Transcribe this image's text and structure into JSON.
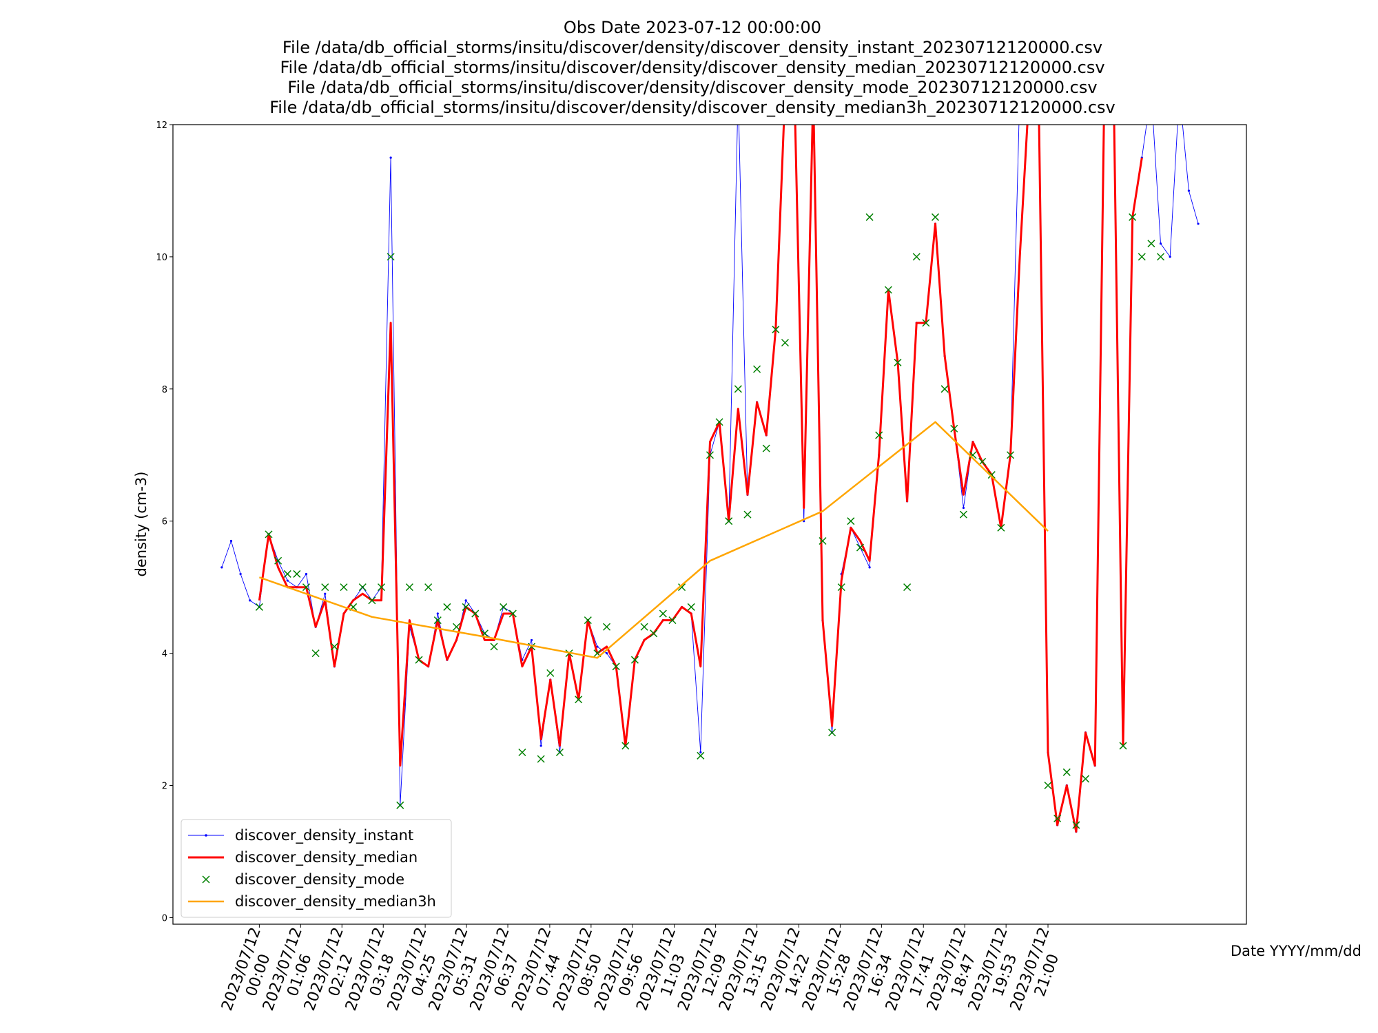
{
  "chart_data": {
    "type": "line",
    "title": [
      "Obs Date 2023-07-12 00:00:00",
      "File /data/db_official_storms/insitu/discover/density/discover_density_instant_20230712120000.csv",
      "File /data/db_official_storms/insitu/discover/density/discover_density_median_20230712120000.csv",
      "File /data/db_official_storms/insitu/discover/density/discover_density_mode_20230712120000.csv",
      "File /data/db_official_storms/insitu/discover/density/discover_density_median3h_20230712120000.csv"
    ],
    "xlabel": "Date YYYY/mm/dd",
    "ylabel": "density (cm-3)",
    "legend": "lower left",
    "xlim": [
      "2023/07/11 21:42",
      "2023/07/13 02:17"
    ],
    "xticks": [
      {
        "value": "2023/07/12 00:00",
        "label": [
          "2023/07/12",
          "00:00"
        ]
      },
      {
        "value": "2023/07/12 01:06",
        "label": [
          "2023/07/12",
          "01:06"
        ]
      },
      {
        "value": "2023/07/12 02:12",
        "label": [
          "2023/07/12",
          "02:12"
        ]
      },
      {
        "value": "2023/07/12 03:18",
        "label": [
          "2023/07/12",
          "03:18"
        ]
      },
      {
        "value": "2023/07/12 04:25",
        "label": [
          "2023/07/12",
          "04:25"
        ]
      },
      {
        "value": "2023/07/12 05:31",
        "label": [
          "2023/07/12",
          "05:31"
        ]
      },
      {
        "value": "2023/07/12 06:37",
        "label": [
          "2023/07/12",
          "06:37"
        ]
      },
      {
        "value": "2023/07/12 07:44",
        "label": [
          "2023/07/12",
          "07:44"
        ]
      },
      {
        "value": "2023/07/12 08:50",
        "label": [
          "2023/07/12",
          "08:50"
        ]
      },
      {
        "value": "2023/07/12 09:56",
        "label": [
          "2023/07/12",
          "09:56"
        ]
      },
      {
        "value": "2023/07/12 11:03",
        "label": [
          "2023/07/12",
          "11:03"
        ]
      },
      {
        "value": "2023/07/12 12:09",
        "label": [
          "2023/07/12",
          "12:09"
        ]
      },
      {
        "value": "2023/07/12 13:15",
        "label": [
          "2023/07/12",
          "13:15"
        ]
      },
      {
        "value": "2023/07/12 14:22",
        "label": [
          "2023/07/12",
          "14:22"
        ]
      },
      {
        "value": "2023/07/12 15:28",
        "label": [
          "2023/07/12",
          "15:28"
        ]
      },
      {
        "value": "2023/07/12 16:34",
        "label": [
          "2023/07/12",
          "16:34"
        ]
      },
      {
        "value": "2023/07/12 17:41",
        "label": [
          "2023/07/12",
          "17:41"
        ]
      },
      {
        "value": "2023/07/12 18:47",
        "label": [
          "2023/07/12",
          "18:47"
        ]
      },
      {
        "value": "2023/07/12 19:53",
        "label": [
          "2023/07/12",
          "19:53"
        ]
      },
      {
        "value": "2023/07/12 21:00",
        "label": [
          "2023/07/12",
          "21:00"
        ]
      }
    ],
    "ylim": [
      -0.1,
      12
    ],
    "yticks": [
      0,
      2,
      4,
      6,
      8,
      10,
      12
    ],
    "x": [
      "2023/07/11 23:00",
      "2023/07/11 23:15",
      "2023/07/11 23:30",
      "2023/07/11 23:45",
      "2023/07/12 00:00",
      "2023/07/12 00:15",
      "2023/07/12 00:30",
      "2023/07/12 00:45",
      "2023/07/12 01:00",
      "2023/07/12 01:15",
      "2023/07/12 01:30",
      "2023/07/12 01:45",
      "2023/07/12 02:00",
      "2023/07/12 02:15",
      "2023/07/12 02:30",
      "2023/07/12 02:45",
      "2023/07/12 03:00",
      "2023/07/12 03:15",
      "2023/07/12 03:30",
      "2023/07/12 03:45",
      "2023/07/12 04:00",
      "2023/07/12 04:15",
      "2023/07/12 04:30",
      "2023/07/12 04:45",
      "2023/07/12 05:00",
      "2023/07/12 05:15",
      "2023/07/12 05:30",
      "2023/07/12 05:45",
      "2023/07/12 06:00",
      "2023/07/12 06:15",
      "2023/07/12 06:30",
      "2023/07/12 06:45",
      "2023/07/12 07:00",
      "2023/07/12 07:15",
      "2023/07/12 07:30",
      "2023/07/12 07:45",
      "2023/07/12 08:00",
      "2023/07/12 08:15",
      "2023/07/12 08:30",
      "2023/07/12 08:45",
      "2023/07/12 09:00",
      "2023/07/12 09:15",
      "2023/07/12 09:30",
      "2023/07/12 09:45",
      "2023/07/12 10:00",
      "2023/07/12 10:15",
      "2023/07/12 10:30",
      "2023/07/12 10:45",
      "2023/07/12 11:00",
      "2023/07/12 11:15",
      "2023/07/12 11:30",
      "2023/07/12 11:45",
      "2023/07/12 12:00",
      "2023/07/12 12:15",
      "2023/07/12 12:30",
      "2023/07/12 12:45",
      "2023/07/12 13:00",
      "2023/07/12 13:15",
      "2023/07/12 13:30",
      "2023/07/12 13:45",
      "2023/07/12 14:00",
      "2023/07/12 14:15",
      "2023/07/12 14:30",
      "2023/07/12 14:45",
      "2023/07/12 15:00",
      "2023/07/12 15:15",
      "2023/07/12 15:30",
      "2023/07/12 15:45",
      "2023/07/12 16:00",
      "2023/07/12 16:15",
      "2023/07/12 16:30",
      "2023/07/12 16:45",
      "2023/07/12 17:00",
      "2023/07/12 17:15",
      "2023/07/12 17:30",
      "2023/07/12 17:45",
      "2023/07/12 18:00",
      "2023/07/12 18:15",
      "2023/07/12 18:30",
      "2023/07/12 18:45",
      "2023/07/12 19:00",
      "2023/07/12 19:15",
      "2023/07/12 19:30",
      "2023/07/12 19:45",
      "2023/07/12 20:00",
      "2023/07/12 20:15",
      "2023/07/12 20:30",
      "2023/07/12 20:45",
      "2023/07/12 21:00",
      "2023/07/12 21:15",
      "2023/07/12 21:30",
      "2023/07/12 21:45",
      "2023/07/12 22:00",
      "2023/07/12 22:15",
      "2023/07/12 22:30",
      "2023/07/12 22:45",
      "2023/07/12 23:00",
      "2023/07/12 23:15",
      "2023/07/12 23:30",
      "2023/07/12 23:45",
      "2023/07/13 00:00",
      "2023/07/13 00:15",
      "2023/07/13 00:30",
      "2023/07/13 00:45",
      "2023/07/13 01:00"
    ],
    "series": [
      {
        "name": "discover_density_instant",
        "color": "blue",
        "type": "line",
        "marker": ".",
        "values": [
          5.3,
          5.7,
          5.2,
          4.8,
          4.7,
          5.8,
          5.4,
          5.1,
          5.0,
          5.2,
          4.4,
          4.9,
          3.8,
          4.6,
          4.8,
          5.0,
          4.8,
          5.0,
          11.5,
          1.7,
          4.4,
          3.9,
          3.8,
          4.6,
          3.9,
          4.2,
          4.8,
          4.6,
          4.3,
          4.2,
          4.7,
          4.6,
          3.9,
          4.2,
          2.6,
          3.6,
          2.5,
          4.0,
          3.3,
          4.5,
          4.1,
          4.0,
          3.8,
          2.6,
          3.9,
          4.2,
          4.3,
          4.5,
          4.5,
          4.7,
          4.6,
          2.5,
          7.0,
          7.5,
          6.0,
          12.5,
          6.4,
          7.8,
          7.3,
          8.9,
          12.5,
          12.5,
          6.0,
          12.5,
          4.5,
          2.8,
          5.2,
          5.9,
          5.6,
          5.3,
          7.0,
          9.5,
          8.4,
          6.3,
          9.0,
          9.0,
          10.5,
          8.5,
          7.4,
          6.2,
          7.2,
          6.9,
          6.7,
          5.9,
          7.0,
          12.5,
          12.5,
          12.5,
          2.5,
          1.4,
          2.0,
          1.3,
          2.8,
          2.3,
          12.5,
          12.5,
          2.6,
          10.6,
          11.5,
          12.5,
          10.2,
          10.0,
          12.5,
          11.0,
          10.5
        ]
      },
      {
        "name": "discover_density_median",
        "color": "red",
        "type": "line",
        "values": [
          null,
          null,
          null,
          null,
          4.8,
          5.8,
          5.3,
          5.0,
          5.0,
          5.0,
          4.4,
          4.8,
          3.8,
          4.6,
          4.8,
          4.9,
          4.8,
          4.8,
          9.0,
          2.3,
          4.5,
          3.9,
          3.8,
          4.5,
          3.9,
          4.2,
          4.7,
          4.6,
          4.2,
          4.2,
          4.6,
          4.6,
          3.8,
          4.1,
          2.7,
          3.6,
          2.6,
          4.0,
          3.3,
          4.5,
          4.0,
          4.1,
          3.8,
          2.6,
          3.9,
          4.2,
          4.3,
          4.5,
          4.5,
          4.7,
          4.6,
          3.8,
          7.2,
          7.5,
          6.0,
          7.7,
          6.4,
          7.8,
          7.3,
          8.9,
          12.5,
          12.5,
          6.2,
          12.5,
          4.5,
          2.9,
          5.1,
          5.9,
          5.7,
          5.4,
          7.0,
          9.5,
          8.4,
          6.3,
          9.0,
          9.0,
          10.5,
          8.5,
          7.4,
          6.4,
          7.2,
          6.9,
          6.7,
          5.9,
          7.0,
          10.0,
          12.5,
          12.5,
          2.5,
          1.4,
          2.0,
          1.3,
          2.8,
          2.3,
          12.5,
          12.5,
          2.6,
          10.6,
          11.5,
          null,
          null,
          null,
          null,
          null,
          null
        ]
      },
      {
        "name": "discover_density_mode",
        "color": "green",
        "type": "scatter",
        "marker": "x",
        "values": [
          null,
          null,
          null,
          null,
          4.7,
          5.8,
          5.4,
          5.2,
          5.2,
          5.0,
          4.0,
          5.0,
          4.1,
          5.0,
          4.7,
          5.0,
          4.8,
          5.0,
          10.0,
          1.7,
          5.0,
          3.9,
          5.0,
          4.5,
          4.7,
          4.4,
          4.7,
          4.6,
          4.3,
          4.1,
          4.7,
          4.6,
          2.5,
          4.1,
          2.4,
          3.7,
          2.5,
          4.0,
          3.3,
          4.5,
          4.0,
          4.4,
          3.8,
          2.6,
          3.9,
          4.4,
          4.3,
          4.6,
          4.5,
          5.0,
          4.7,
          2.45,
          7.0,
          7.5,
          6.0,
          8.0,
          6.1,
          8.3,
          7.1,
          8.9,
          8.7,
          null,
          null,
          null,
          5.7,
          2.8,
          5.0,
          6.0,
          5.6,
          10.6,
          7.3,
          9.5,
          8.4,
          5.0,
          10.0,
          9.0,
          10.6,
          8.0,
          7.4,
          6.1,
          7.0,
          6.9,
          6.7,
          5.9,
          7.0,
          null,
          null,
          null,
          2.0,
          1.5,
          2.2,
          1.4,
          2.1,
          null,
          null,
          null,
          2.6,
          10.6,
          10.0,
          10.2,
          10.0,
          null,
          null,
          null,
          null
        ]
      },
      {
        "name": "discover_density_median3h",
        "color": "orange",
        "type": "line",
        "x": [
          "2023/07/12 00:00",
          "2023/07/12 03:00",
          "2023/07/12 06:00",
          "2023/07/12 09:00",
          "2023/07/12 12:00",
          "2023/07/12 15:00",
          "2023/07/12 18:00",
          "2023/07/12 21:00"
        ],
        "values": [
          5.15,
          4.55,
          4.25,
          3.93,
          5.4,
          6.15,
          7.5,
          5.85
        ]
      }
    ]
  }
}
